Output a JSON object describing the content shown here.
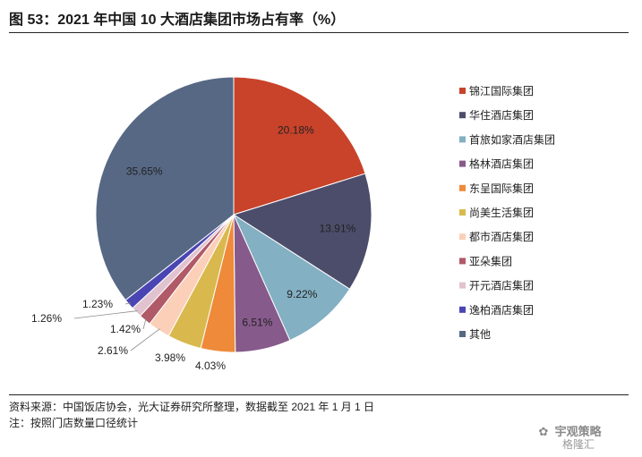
{
  "figure_title": "图 53：2021 年中国 10 大酒店集团市场占有率（%）",
  "source_note": "资料来源：中国饭店协会，光大证券研究所整理，数据截至 2021 年 1 月 1 日",
  "note": "注：按照门店数量口径统计",
  "watermark": {
    "icon": "wechat-icon",
    "text": "宇观策略",
    "sub": "格隆汇"
  },
  "chart_data": {
    "type": "pie",
    "title": "",
    "unit": "%",
    "start_angle": "12 o'clock",
    "direction": "clockwise",
    "legend_position": "right",
    "series": [
      {
        "name": "锦江国际集团",
        "value": 20.18,
        "label": "20.18%",
        "color": "#c8432a"
      },
      {
        "name": "华住酒店集团",
        "value": 13.91,
        "label": "13.91%",
        "color": "#4c4d6b"
      },
      {
        "name": "首旅如家酒店集团",
        "value": 9.22,
        "label": "9.22%",
        "color": "#83b0c3"
      },
      {
        "name": "格林酒店集团",
        "value": 6.51,
        "label": "6.51%",
        "color": "#875a8c"
      },
      {
        "name": "东呈国际集团",
        "value": 4.03,
        "label": "4.03%",
        "color": "#ee8a3a"
      },
      {
        "name": "尚美生活集团",
        "value": 3.98,
        "label": "3.98%",
        "color": "#d9b94d"
      },
      {
        "name": "都市酒店集团",
        "value": 2.61,
        "label": "2.61%",
        "color": "#fbcfb8"
      },
      {
        "name": "亚朵集团",
        "value": 1.42,
        "label": "1.42%",
        "color": "#b05a68"
      },
      {
        "name": "开元酒店集团",
        "value": 1.26,
        "label": "1.26%",
        "color": "#e1c3cf"
      },
      {
        "name": "逸柏酒店集团",
        "value": 1.23,
        "label": "1.23%",
        "color": "#4a45b3"
      },
      {
        "name": "其他",
        "value": 35.65,
        "label": "35.65%",
        "color": "#566884"
      }
    ]
  }
}
